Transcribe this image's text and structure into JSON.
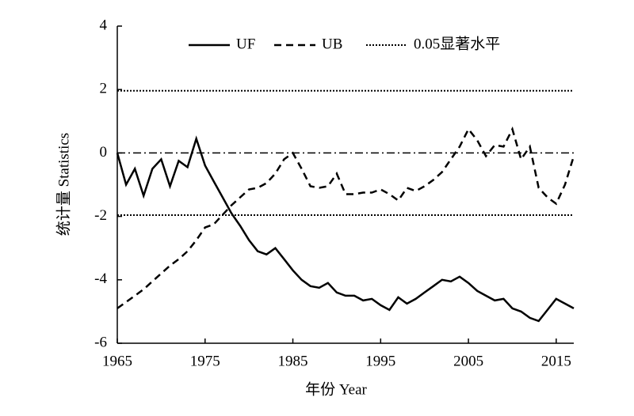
{
  "chart_data": {
    "type": "line",
    "x_label": "年份 Year",
    "y_label": "统计量 Statistics",
    "x": [
      1965,
      1966,
      1967,
      1968,
      1969,
      1970,
      1971,
      1972,
      1973,
      1974,
      1975,
      1976,
      1977,
      1978,
      1979,
      1980,
      1981,
      1982,
      1983,
      1984,
      1985,
      1986,
      1987,
      1988,
      1989,
      1990,
      1991,
      1992,
      1993,
      1994,
      1995,
      1996,
      1997,
      1998,
      1999,
      2000,
      2001,
      2002,
      2003,
      2004,
      2005,
      2006,
      2007,
      2008,
      2009,
      2010,
      2011,
      2012,
      2013,
      2014,
      2015,
      2016,
      2017
    ],
    "series": [
      {
        "name": "UF",
        "color": "#000000",
        "line_style": "solid",
        "values": [
          0,
          -1.0,
          -0.5,
          -1.35,
          -0.5,
          -0.2,
          -1.05,
          -0.25,
          -0.45,
          0.45,
          -0.4,
          -0.9,
          -1.4,
          -1.9,
          -2.3,
          -2.75,
          -3.1,
          -3.2,
          -3.0,
          -3.35,
          -3.7,
          -4.0,
          -4.2,
          -4.25,
          -4.1,
          -4.4,
          -4.5,
          -4.5,
          -4.65,
          -4.6,
          -4.8,
          -4.95,
          -4.55,
          -4.75,
          -4.6,
          -4.4,
          -4.2,
          -4.0,
          -4.05,
          -3.9,
          -4.1,
          -4.35,
          -4.5,
          -4.65,
          -4.6,
          -4.9,
          -5.0,
          -5.2,
          -5.3,
          -4.95,
          -4.6,
          -4.75,
          -4.9
        ]
      },
      {
        "name": "UB",
        "color": "#000000",
        "line_style": "dashed",
        "values": [
          -4.9,
          -4.7,
          -4.5,
          -4.3,
          -4.05,
          -3.8,
          -3.55,
          -3.35,
          -3.1,
          -2.75,
          -2.35,
          -2.25,
          -1.95,
          -1.65,
          -1.4,
          -1.15,
          -1.1,
          -0.95,
          -0.65,
          -0.2,
          0.0,
          -0.5,
          -1.05,
          -1.1,
          -1.05,
          -0.65,
          -1.3,
          -1.3,
          -1.25,
          -1.25,
          -1.15,
          -1.3,
          -1.5,
          -1.1,
          -1.2,
          -1.05,
          -0.85,
          -0.6,
          -0.2,
          0.2,
          0.75,
          0.4,
          -0.1,
          0.25,
          0.2,
          0.75,
          -0.2,
          0.2,
          -1.1,
          -1.4,
          -1.6,
          -1.0,
          -0.1
        ]
      }
    ],
    "significance": {
      "name": "0.05显著水平",
      "color": "#000000",
      "line_style": "dotted",
      "values": [
        1.96,
        -1.96
      ]
    },
    "zero_line": 0,
    "xlim": [
      1965,
      2017
    ],
    "xticks": [
      1965,
      1975,
      1985,
      1995,
      2005,
      2015
    ],
    "ylim": [
      -6,
      4
    ],
    "yticks": [
      -6,
      -4,
      -2,
      0,
      2,
      4
    ],
    "grid": false,
    "legend": "top"
  }
}
